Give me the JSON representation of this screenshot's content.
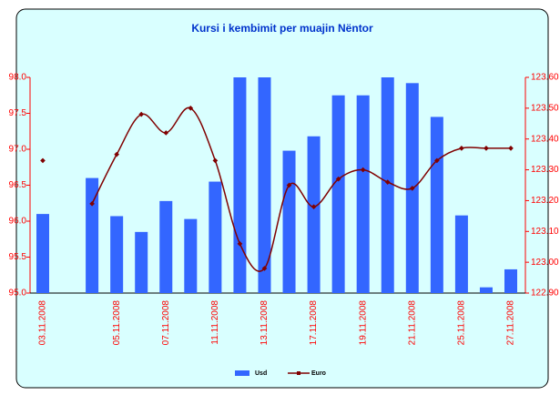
{
  "chart_data": {
    "type": "bar_line",
    "title": "Kursi i kembimit per muajin Nëntor",
    "categories": [
      "03.11.2008",
      null,
      null,
      "05.11.2008",
      null,
      "07.11.2008",
      null,
      "11.11.2008",
      null,
      "13.11.2008",
      null,
      "17.11.2008",
      null,
      "19.11.2008",
      null,
      "21.11.2008",
      null,
      "25.11.2008",
      null,
      "27.11.2008"
    ],
    "series": [
      {
        "name": "Usd",
        "type": "bar",
        "color": "#3366ff",
        "values": [
          96.1,
          null,
          96.6,
          96.07,
          95.85,
          96.28,
          96.03,
          96.55,
          98.2,
          98.2,
          96.98,
          97.18,
          97.75,
          97.75,
          98.2,
          97.92,
          97.45,
          96.08,
          95.08,
          95.33
        ]
      },
      {
        "name": "Euro",
        "type": "line",
        "axis": "y2",
        "color": "#800000",
        "values": [
          123.33,
          null,
          123.19,
          123.35,
          123.48,
          123.42,
          123.5,
          123.33,
          123.06,
          122.98,
          123.25,
          123.18,
          123.27,
          123.3,
          123.26,
          123.24,
          123.33,
          123.37,
          123.37,
          123.37
        ]
      }
    ],
    "ylim": [
      95,
      98
    ],
    "yticks": [
      {
        "value": 95,
        "label": "95.0"
      },
      95.5,
      {
        "value": 96,
        "label": "96.0"
      },
      96.5,
      {
        "value": 97,
        "label": "97.0"
      },
      97.5,
      {
        "value": 98,
        "label": "98.0"
      }
    ],
    "y2lim": [
      122.9,
      123.6
    ],
    "y2ticks": [
      {
        "value": 122.9,
        "label": "122.90"
      },
      {
        "value": 123.0,
        "label": "123.00"
      },
      {
        "value": 123.1,
        "label": "123.10"
      },
      {
        "value": 123.2,
        "label": "123.20"
      },
      {
        "value": 123.3,
        "label": "123.30"
      },
      {
        "value": 123.4,
        "label": "123.40"
      },
      {
        "value": 123.5,
        "label": "123.50"
      },
      {
        "value": 123.6,
        "label": "123.60"
      }
    ],
    "axis_color": "#ff0000",
    "legend": "bottom"
  }
}
